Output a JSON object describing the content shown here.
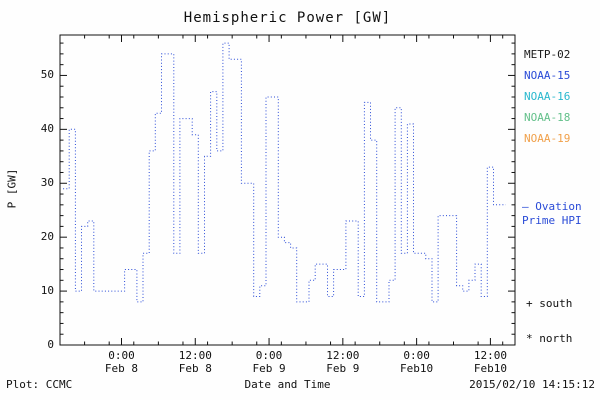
{
  "legend": {
    "entries": [
      {
        "label": "METP-02",
        "color": "#1a1a1a"
      },
      {
        "label": "NOAA-15",
        "color": "#2a4bd7"
      },
      {
        "label": "NOAA-16",
        "color": "#29b8ce"
      },
      {
        "label": "NOAA-18",
        "color": "#63c08a"
      },
      {
        "label": "NOAA-19",
        "color": "#f0a04a"
      }
    ],
    "hpi": {
      "line1": "— Ovation",
      "line2": "Prime HPI",
      "color": "#2a4bd7"
    }
  },
  "markers": [
    {
      "symbol": "+",
      "label": "south"
    },
    {
      "symbol": "*",
      "label": "north"
    }
  ],
  "footer": {
    "plot_credit": "Plot: CCMC",
    "timestamp": "2015/02/10 14:15:12"
  },
  "chart_data": {
    "type": "line",
    "title": "Hemispheric Power [GW]",
    "xlabel": "Date and Time",
    "ylabel": "P [GW]",
    "ylim": [
      0,
      57.5
    ],
    "yticks": [
      0,
      10,
      20,
      30,
      40,
      50
    ],
    "y_minor_tick_every": 2,
    "grid": false,
    "legend_position": "right-outside",
    "x_axis": {
      "left_edge": "2015-02-07 14:00",
      "span_hours": 74,
      "minor_tick_every_hours": 4,
      "major_ticks": [
        {
          "offset_hours": 10,
          "line1": "0:00",
          "line2": "Feb 8"
        },
        {
          "offset_hours": 22,
          "line1": "12:00",
          "line2": "Feb 8"
        },
        {
          "offset_hours": 34,
          "line1": "0:00",
          "line2": "Feb 9"
        },
        {
          "offset_hours": 46,
          "line1": "12:00",
          "line2": "Feb 9"
        },
        {
          "offset_hours": 58,
          "line1": "0:00",
          "line2": "Feb10"
        },
        {
          "offset_hours": 70,
          "line1": "12:00",
          "line2": "Feb10"
        }
      ]
    },
    "series": [
      {
        "name": "Ovation Prime HPI",
        "color": "#2a4bd7",
        "line_style": "dotted-step",
        "start": "2015-02-07 15:00",
        "start_offset_hours": 1,
        "step_hours": 1,
        "values": [
          29,
          40,
          10,
          22,
          23,
          10,
          10,
          10,
          10,
          10,
          14,
          14,
          8,
          17,
          36,
          43,
          54,
          54,
          17,
          42,
          42,
          39,
          17,
          35,
          47,
          36,
          56,
          53,
          53,
          30,
          30,
          9,
          11,
          46,
          46,
          20,
          19,
          18,
          8,
          8,
          12,
          15,
          15,
          9,
          14,
          14,
          23,
          23,
          9,
          45,
          38,
          8,
          8,
          12,
          44,
          17,
          41,
          17,
          17,
          16,
          8,
          24,
          24,
          24,
          11,
          10,
          12,
          15,
          9,
          33,
          26,
          26
        ]
      }
    ]
  }
}
